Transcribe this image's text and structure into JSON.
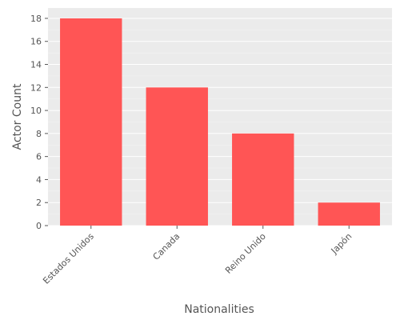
{
  "chart_data": {
    "type": "bar",
    "title": "",
    "xlabel": "Nationalities",
    "ylabel": "Actor Count",
    "categories": [
      "Estados Unidos",
      "Canada",
      "Reino Unido",
      "Japón"
    ],
    "values": [
      18,
      12,
      8,
      2
    ],
    "ylim": [
      0,
      18.9
    ],
    "yticks": [
      0,
      2,
      4,
      6,
      8,
      10,
      12,
      14,
      16,
      18
    ],
    "grid": true,
    "legend": "none",
    "colors": {
      "bar": "#ff5555",
      "plot_background": "#ebebeb",
      "gridline": "#ffffff"
    }
  }
}
